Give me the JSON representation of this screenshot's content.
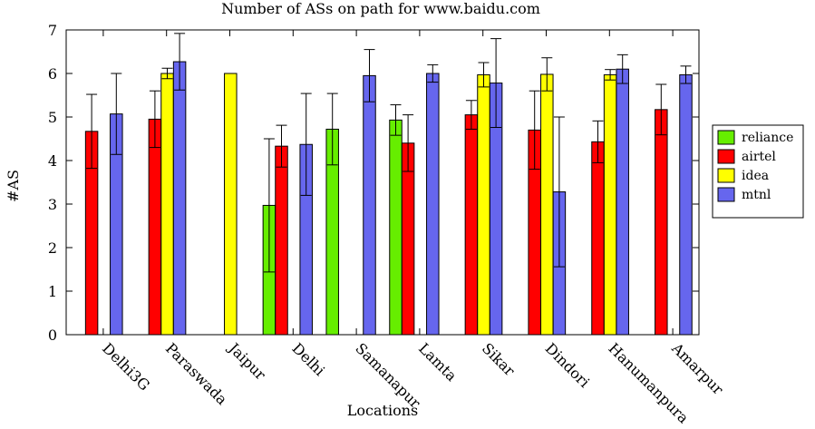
{
  "chart_data": {
    "type": "bar",
    "title": "Number of ASs on path for www.baidu.com",
    "xlabel": "Locations",
    "ylabel": "#AS",
    "ylim": [
      0,
      7
    ],
    "yticks": [
      0,
      1,
      2,
      3,
      4,
      5,
      6,
      7
    ],
    "categories": [
      "Delhi3G",
      "Paraswada",
      "Jaipur",
      "Delhi",
      "Samanapur",
      "Lamta",
      "Sikar",
      "Dindori",
      "Hanumanpura",
      "Amarpur"
    ],
    "legend_position": "right",
    "grid": false,
    "error_bars": true,
    "series": [
      {
        "name": "reliance",
        "color": "#66ee00",
        "values": [
          null,
          null,
          null,
          2.97,
          4.72,
          4.93,
          null,
          null,
          null,
          null
        ],
        "errors": [
          null,
          null,
          null,
          1.53,
          0.82,
          0.35,
          null,
          null,
          null,
          null
        ]
      },
      {
        "name": "airtel",
        "color": "#ff0000",
        "values": [
          4.67,
          4.95,
          null,
          4.33,
          null,
          4.4,
          5.05,
          4.7,
          4.43,
          5.17
        ],
        "errors": [
          0.85,
          0.65,
          null,
          0.48,
          null,
          0.65,
          0.33,
          0.9,
          0.48,
          0.58
        ]
      },
      {
        "name": "idea",
        "color": "#ffff00",
        "values": [
          null,
          6.0,
          6.0,
          null,
          null,
          null,
          5.97,
          5.98,
          5.97,
          null
        ],
        "errors": [
          null,
          0.12,
          0,
          null,
          null,
          null,
          0.28,
          0.38,
          0.12,
          null
        ]
      },
      {
        "name": "mtnl",
        "color": "#6666ee",
        "values": [
          5.07,
          6.27,
          null,
          4.37,
          5.95,
          6.0,
          5.78,
          3.28,
          6.1,
          5.97
        ],
        "errors": [
          0.93,
          0.65,
          null,
          1.17,
          0.6,
          0.2,
          1.02,
          1.72,
          0.33,
          0.2
        ]
      }
    ]
  }
}
